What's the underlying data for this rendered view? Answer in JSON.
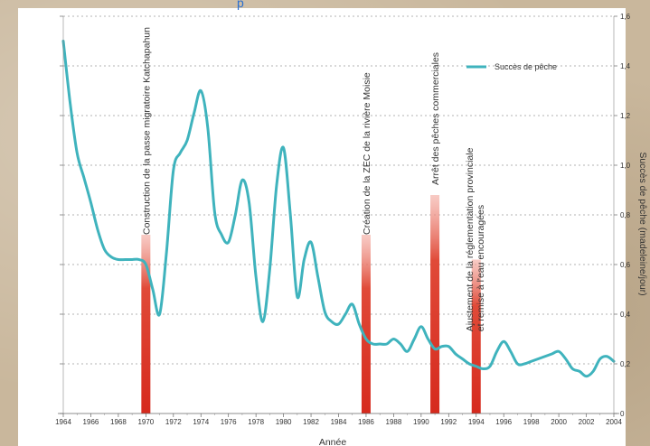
{
  "chart_data": {
    "type": "line",
    "title": "",
    "title_fragment": "p",
    "xlabel": "Année",
    "ylabel": "Succès de pêche (madeleine/jour)",
    "xlim": [
      1964,
      2004
    ],
    "ylim": [
      0,
      1.6
    ],
    "x_ticks": [
      1964,
      1966,
      1968,
      1970,
      1972,
      1974,
      1976,
      1978,
      1980,
      1982,
      1984,
      1986,
      1988,
      1990,
      1992,
      1994,
      1996,
      1998,
      2000,
      2002,
      2004
    ],
    "x_tick_labels": [
      "1964",
      "1966",
      "1968",
      "1970",
      "1972",
      "1974",
      "1976",
      "1978",
      "1980",
      "1982",
      "1984",
      "1986",
      "1988",
      "1990",
      "1992",
      "1994",
      "1996",
      "1998",
      "2000",
      "2002",
      "2004"
    ],
    "y_ticks": [
      0,
      0.2,
      0.4,
      0.6,
      0.8,
      1.0,
      1.2,
      1.4,
      1.6
    ],
    "y_tick_labels": [
      "0",
      "0,2",
      "0,4",
      "0,6",
      "0,8",
      "1,0",
      "1,2",
      "1,4",
      "1,6"
    ],
    "y_axis_side": "right",
    "grid": "horizontal-dashed",
    "legend_position": "top-right",
    "series": [
      {
        "name": "Succès de pêche",
        "color": "#3fb3bd",
        "x": [
          1964,
          1964.5,
          1965,
          1965.5,
          1966,
          1966.5,
          1967,
          1967.5,
          1968,
          1968.5,
          1969,
          1969.5,
          1970,
          1970.5,
          1971,
          1971.5,
          1972,
          1972.5,
          1973,
          1973.5,
          1974,
          1974.5,
          1975,
          1975.5,
          1976,
          1976.5,
          1977,
          1977.5,
          1978,
          1978.5,
          1979,
          1979.5,
          1980,
          1980.5,
          1981,
          1981.5,
          1982,
          1982.5,
          1983,
          1983.5,
          1984,
          1984.5,
          1985,
          1985.5,
          1986,
          1986.5,
          1987,
          1987.5,
          1988,
          1988.5,
          1989,
          1989.5,
          1990,
          1990.5,
          1991,
          1991.5,
          1992,
          1992.5,
          1993,
          1993.5,
          1994,
          1994.5,
          1995,
          1995.5,
          1996,
          1996.5,
          1997,
          1997.5,
          1998,
          1998.5,
          1999,
          1999.5,
          2000,
          2000.5,
          2001,
          2001.5,
          2002,
          2002.5,
          2003,
          2003.5,
          2004
        ],
        "y": [
          1.5,
          1.25,
          1.05,
          0.95,
          0.85,
          0.74,
          0.66,
          0.63,
          0.62,
          0.62,
          0.62,
          0.62,
          0.6,
          0.5,
          0.4,
          0.65,
          0.98,
          1.05,
          1.1,
          1.21,
          1.3,
          1.15,
          0.81,
          0.72,
          0.69,
          0.8,
          0.94,
          0.85,
          0.55,
          0.37,
          0.58,
          0.92,
          1.07,
          0.8,
          0.47,
          0.62,
          0.69,
          0.55,
          0.41,
          0.37,
          0.36,
          0.4,
          0.44,
          0.36,
          0.3,
          0.28,
          0.28,
          0.28,
          0.3,
          0.28,
          0.25,
          0.3,
          0.35,
          0.3,
          0.26,
          0.27,
          0.27,
          0.24,
          0.22,
          0.2,
          0.19,
          0.18,
          0.19,
          0.25,
          0.29,
          0.25,
          0.2,
          0.2,
          0.21,
          0.22,
          0.23,
          0.24,
          0.25,
          0.22,
          0.18,
          0.17,
          0.15,
          0.17,
          0.22,
          0.23,
          0.21
        ]
      }
    ],
    "events": [
      {
        "year": 1970,
        "label": "Construction de la passe migratoire Katchapahun",
        "color": "#d62a1e"
      },
      {
        "year": 1986,
        "label": "Création de la ZEC de la rivière Moisie",
        "color": "#d62a1e"
      },
      {
        "year": 1991,
        "label": "Arrêt des pêches commerciales",
        "color": "#d62a1e"
      },
      {
        "year": 1994,
        "label": "Ajustement de la réglementation provinciale",
        "label2": "et remise à l'eau encouragées",
        "color": "#d62a1e"
      }
    ]
  }
}
